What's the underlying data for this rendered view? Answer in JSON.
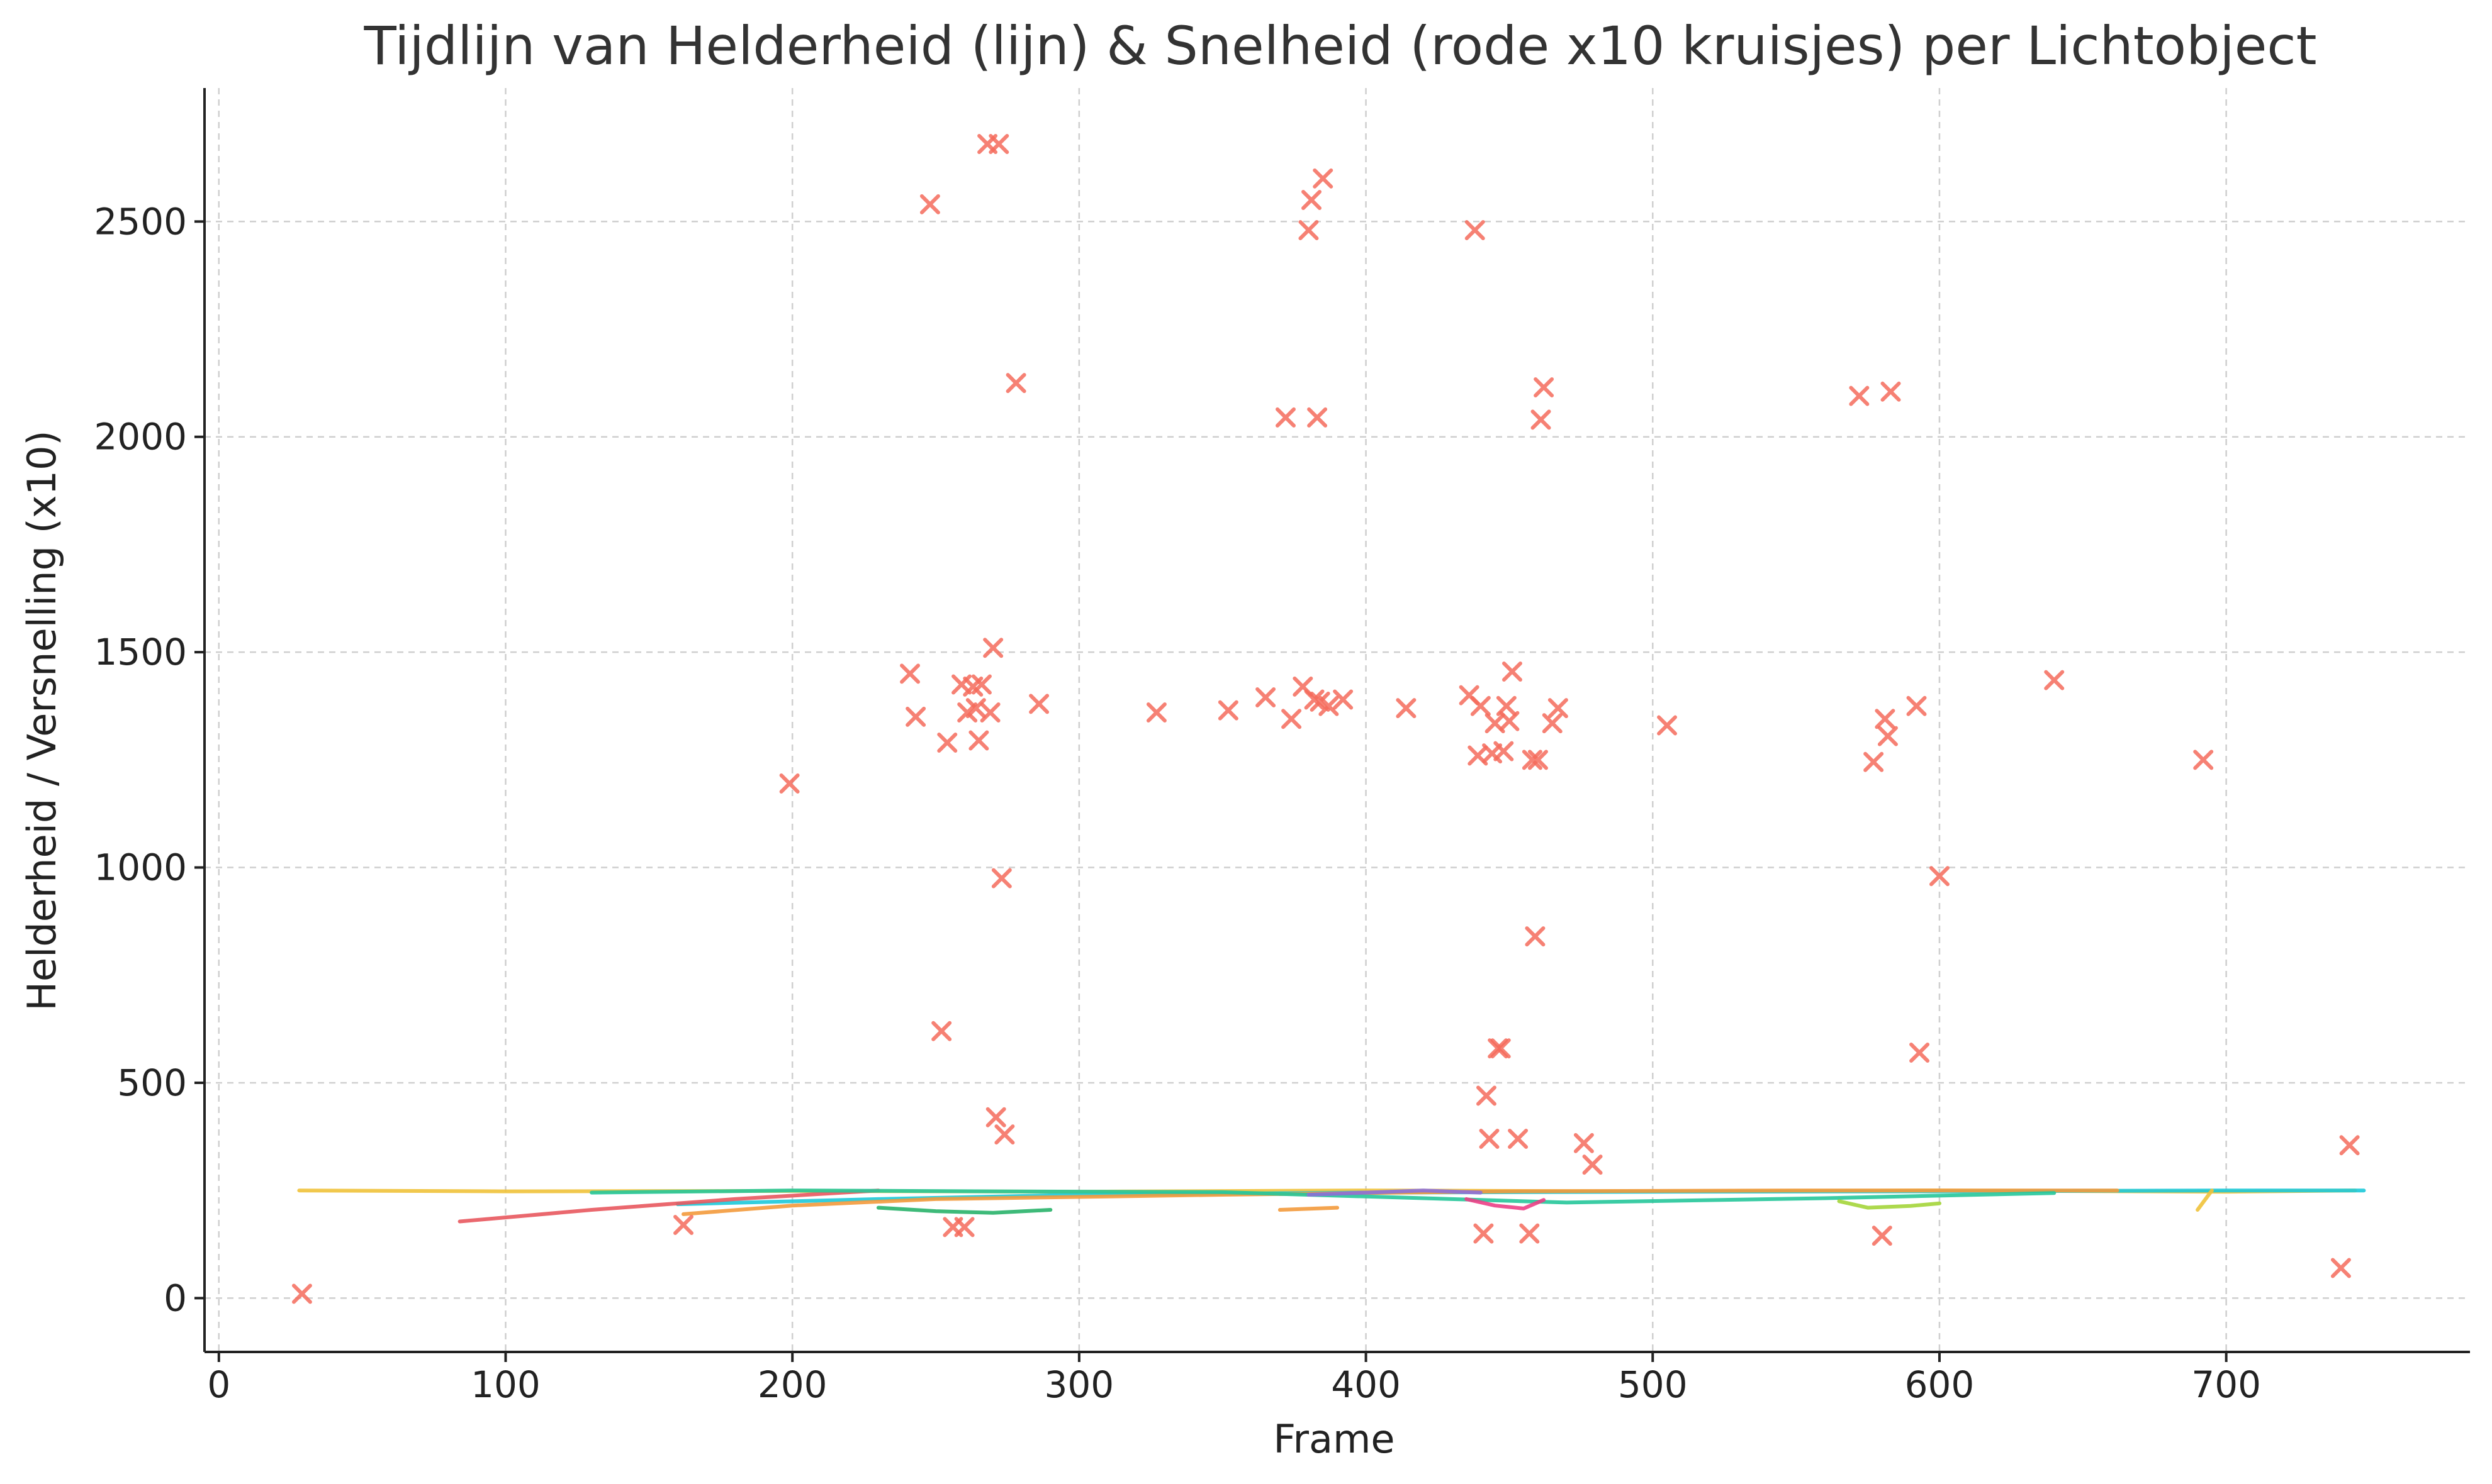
{
  "chart_data": {
    "type": "scatter",
    "title": "Tijdlijn van Helderheid (lijn) & Snelheid (rode x10 kruisjes) per Lichtobject",
    "xlabel": "Frame",
    "ylabel": "Helderheid / Versnelling (x10)",
    "xlim": [
      -5,
      785
    ],
    "ylim": [
      -125,
      2810
    ],
    "xticks": [
      0,
      100,
      200,
      300,
      400,
      500,
      600,
      700
    ],
    "yticks": [
      0,
      500,
      1000,
      1500,
      2000,
      2500
    ],
    "grid": true,
    "marker_color": "#f46b5c",
    "line_series": [
      {
        "color": "#f0c23a",
        "x": [
          28,
          100,
          200,
          300,
          400,
          500,
          600,
          700,
          745
        ],
        "y": [
          250,
          248,
          249,
          247,
          250,
          248,
          250,
          247,
          250
        ]
      },
      {
        "color": "#1dc9d9",
        "x": [
          160,
          230,
          300,
          400,
          500,
          600,
          700,
          748
        ],
        "y": [
          218,
          230,
          240,
          245,
          247,
          248,
          250,
          250
        ]
      },
      {
        "color": "#e8585e",
        "x": [
          84,
          130,
          180,
          230
        ],
        "y": [
          178,
          205,
          230,
          250
        ]
      },
      {
        "color": "#f39a3c",
        "x": [
          162,
          200,
          250,
          350,
          450,
          550,
          662
        ],
        "y": [
          195,
          215,
          230,
          240,
          248,
          250,
          250
        ]
      },
      {
        "color": "#26c79a",
        "x": [
          130,
          200,
          270,
          350,
          470,
          560,
          640
        ],
        "y": [
          245,
          250,
          248,
          246,
          222,
          232,
          244
        ]
      },
      {
        "color": "#29b36a",
        "x": [
          230,
          250,
          270,
          290
        ],
        "y": [
          210,
          202,
          198,
          205
        ]
      },
      {
        "color": "#a4d53a",
        "x": [
          565,
          575,
          590,
          600
        ],
        "y": [
          225,
          210,
          214,
          220
        ]
      },
      {
        "color": "#ec3f86",
        "x": [
          435,
          445,
          455,
          462
        ],
        "y": [
          230,
          215,
          208,
          228
        ]
      },
      {
        "color": "#8c6fd8",
        "x": [
          380,
          400,
          420,
          440
        ],
        "y": [
          240,
          245,
          250,
          245
        ]
      },
      {
        "color": "#f39a3c",
        "x": [
          370,
          390
        ],
        "y": [
          205,
          210
        ]
      },
      {
        "color": "#f0c23a",
        "x": [
          690,
          695
        ],
        "y": [
          205,
          250
        ]
      }
    ],
    "markers": [
      {
        "x": 29,
        "y": 10
      },
      {
        "x": 162,
        "y": 170
      },
      {
        "x": 199,
        "y": 1195
      },
      {
        "x": 241,
        "y": 1450
      },
      {
        "x": 243,
        "y": 1350
      },
      {
        "x": 248,
        "y": 2540
      },
      {
        "x": 252,
        "y": 620
      },
      {
        "x": 254,
        "y": 1290
      },
      {
        "x": 256,
        "y": 165
      },
      {
        "x": 259,
        "y": 1425
      },
      {
        "x": 260,
        "y": 165
      },
      {
        "x": 261,
        "y": 1360
      },
      {
        "x": 263,
        "y": 1420
      },
      {
        "x": 264,
        "y": 1370
      },
      {
        "x": 265,
        "y": 1295
      },
      {
        "x": 266,
        "y": 1425
      },
      {
        "x": 268,
        "y": 2680
      },
      {
        "x": 269,
        "y": 1360
      },
      {
        "x": 270,
        "y": 1510
      },
      {
        "x": 271,
        "y": 420
      },
      {
        "x": 272,
        "y": 2680
      },
      {
        "x": 273,
        "y": 975
      },
      {
        "x": 274,
        "y": 380
      },
      {
        "x": 278,
        "y": 2125
      },
      {
        "x": 286,
        "y": 1380
      },
      {
        "x": 327,
        "y": 1360
      },
      {
        "x": 352,
        "y": 1365
      },
      {
        "x": 365,
        "y": 1395
      },
      {
        "x": 372,
        "y": 2045
      },
      {
        "x": 374,
        "y": 1345
      },
      {
        "x": 378,
        "y": 1420
      },
      {
        "x": 380,
        "y": 2480
      },
      {
        "x": 381,
        "y": 2550
      },
      {
        "x": 382,
        "y": 1390
      },
      {
        "x": 383,
        "y": 2045
      },
      {
        "x": 384,
        "y": 1385
      },
      {
        "x": 385,
        "y": 2600
      },
      {
        "x": 387,
        "y": 1375
      },
      {
        "x": 392,
        "y": 1390
      },
      {
        "x": 414,
        "y": 1370
      },
      {
        "x": 436,
        "y": 1400
      },
      {
        "x": 438,
        "y": 2480
      },
      {
        "x": 439,
        "y": 1260
      },
      {
        "x": 440,
        "y": 1375
      },
      {
        "x": 441,
        "y": 150
      },
      {
        "x": 442,
        "y": 470
      },
      {
        "x": 443,
        "y": 370
      },
      {
        "x": 444,
        "y": 1265
      },
      {
        "x": 445,
        "y": 1335
      },
      {
        "x": 446,
        "y": 580
      },
      {
        "x": 447,
        "y": 580
      },
      {
        "x": 448,
        "y": 1270
      },
      {
        "x": 449,
        "y": 1375
      },
      {
        "x": 450,
        "y": 1340
      },
      {
        "x": 451,
        "y": 1455
      },
      {
        "x": 453,
        "y": 370
      },
      {
        "x": 457,
        "y": 150
      },
      {
        "x": 458,
        "y": 1250
      },
      {
        "x": 459,
        "y": 840
      },
      {
        "x": 460,
        "y": 1250
      },
      {
        "x": 461,
        "y": 2040
      },
      {
        "x": 462,
        "y": 2115
      },
      {
        "x": 465,
        "y": 1335
      },
      {
        "x": 467,
        "y": 1370
      },
      {
        "x": 476,
        "y": 360
      },
      {
        "x": 479,
        "y": 310
      },
      {
        "x": 505,
        "y": 1330
      },
      {
        "x": 572,
        "y": 2095
      },
      {
        "x": 577,
        "y": 1245
      },
      {
        "x": 580,
        "y": 145
      },
      {
        "x": 581,
        "y": 1345
      },
      {
        "x": 582,
        "y": 1305
      },
      {
        "x": 583,
        "y": 2105
      },
      {
        "x": 592,
        "y": 1375
      },
      {
        "x": 593,
        "y": 570
      },
      {
        "x": 600,
        "y": 980
      },
      {
        "x": 640,
        "y": 1435
      },
      {
        "x": 692,
        "y": 1250
      },
      {
        "x": 740,
        "y": 70
      },
      {
        "x": 743,
        "y": 355
      }
    ]
  }
}
